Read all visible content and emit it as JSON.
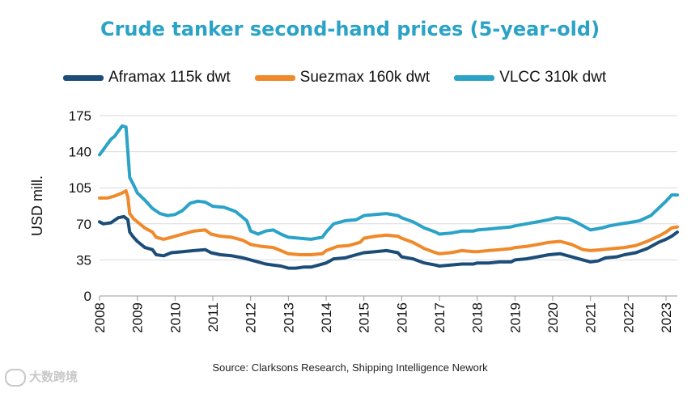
{
  "chart_data": {
    "type": "line",
    "title": "Crude tanker second-hand prices (5-year-old)",
    "title_color": "#2ba3c7",
    "ylabel": "USD mill.",
    "xlabel": "",
    "ylim": [
      0,
      175
    ],
    "xlim": [
      2008,
      2023.3
    ],
    "yticks": [
      0,
      35,
      70,
      105,
      140,
      175
    ],
    "xticks": [
      "2008",
      "2009",
      "2010",
      "2011",
      "2012",
      "2013",
      "2014",
      "2015",
      "2016",
      "2017",
      "2018",
      "2019",
      "2020",
      "2021",
      "2022",
      "2023"
    ],
    "grid": "horizontal",
    "legend_position": "top",
    "series": [
      {
        "name": "Aframax 115k dwt",
        "color": "#1c4d78",
        "points": [
          [
            2008.0,
            72
          ],
          [
            2008.1,
            70
          ],
          [
            2008.3,
            71
          ],
          [
            2008.5,
            76
          ],
          [
            2008.65,
            77
          ],
          [
            2008.75,
            74
          ],
          [
            2008.8,
            62
          ],
          [
            2008.9,
            57
          ],
          [
            2009.0,
            53
          ],
          [
            2009.2,
            47
          ],
          [
            2009.4,
            45
          ],
          [
            2009.5,
            40
          ],
          [
            2009.7,
            39
          ],
          [
            2009.9,
            42
          ],
          [
            2010.2,
            43
          ],
          [
            2010.5,
            44
          ],
          [
            2010.8,
            45
          ],
          [
            2010.95,
            42
          ],
          [
            2011.2,
            40
          ],
          [
            2011.5,
            39
          ],
          [
            2011.8,
            37
          ],
          [
            2012.0,
            35
          ],
          [
            2012.2,
            33
          ],
          [
            2012.4,
            31
          ],
          [
            2012.6,
            30
          ],
          [
            2012.8,
            29
          ],
          [
            2013.0,
            27
          ],
          [
            2013.2,
            27
          ],
          [
            2013.4,
            28
          ],
          [
            2013.6,
            28
          ],
          [
            2013.8,
            30
          ],
          [
            2014.0,
            32
          ],
          [
            2014.2,
            36
          ],
          [
            2014.5,
            37
          ],
          [
            2014.8,
            40
          ],
          [
            2015.0,
            42
          ],
          [
            2015.3,
            43
          ],
          [
            2015.6,
            44
          ],
          [
            2015.9,
            42
          ],
          [
            2016.0,
            38
          ],
          [
            2016.3,
            36
          ],
          [
            2016.6,
            32
          ],
          [
            2016.9,
            30
          ],
          [
            2017.0,
            29
          ],
          [
            2017.3,
            30
          ],
          [
            2017.6,
            31
          ],
          [
            2017.9,
            31
          ],
          [
            2018.0,
            32
          ],
          [
            2018.3,
            32
          ],
          [
            2018.6,
            33
          ],
          [
            2018.9,
            33
          ],
          [
            2019.0,
            35
          ],
          [
            2019.3,
            36
          ],
          [
            2019.6,
            38
          ],
          [
            2019.9,
            40
          ],
          [
            2020.2,
            41
          ],
          [
            2020.5,
            38
          ],
          [
            2020.8,
            35
          ],
          [
            2021.0,
            33
          ],
          [
            2021.2,
            34
          ],
          [
            2021.4,
            37
          ],
          [
            2021.7,
            38
          ],
          [
            2021.9,
            40
          ],
          [
            2022.2,
            42
          ],
          [
            2022.5,
            46
          ],
          [
            2022.8,
            52
          ],
          [
            2023.0,
            55
          ],
          [
            2023.15,
            58
          ],
          [
            2023.3,
            62
          ]
        ]
      },
      {
        "name": "Suezmax 160k dwt",
        "color": "#f0892a",
        "points": [
          [
            2008.0,
            95
          ],
          [
            2008.2,
            95
          ],
          [
            2008.4,
            97
          ],
          [
            2008.6,
            100
          ],
          [
            2008.7,
            102
          ],
          [
            2008.75,
            96
          ],
          [
            2008.8,
            80
          ],
          [
            2008.9,
            75
          ],
          [
            2009.0,
            72
          ],
          [
            2009.2,
            66
          ],
          [
            2009.4,
            62
          ],
          [
            2009.5,
            57
          ],
          [
            2009.7,
            55
          ],
          [
            2009.9,
            57
          ],
          [
            2010.2,
            60
          ],
          [
            2010.5,
            63
          ],
          [
            2010.8,
            64
          ],
          [
            2010.95,
            60
          ],
          [
            2011.2,
            58
          ],
          [
            2011.5,
            57
          ],
          [
            2011.8,
            54
          ],
          [
            2012.0,
            50
          ],
          [
            2012.3,
            48
          ],
          [
            2012.6,
            47
          ],
          [
            2012.8,
            44
          ],
          [
            2013.0,
            41
          ],
          [
            2013.3,
            40
          ],
          [
            2013.6,
            40
          ],
          [
            2013.9,
            41
          ],
          [
            2014.0,
            44
          ],
          [
            2014.3,
            48
          ],
          [
            2014.6,
            49
          ],
          [
            2014.9,
            52
          ],
          [
            2015.0,
            56
          ],
          [
            2015.3,
            58
          ],
          [
            2015.6,
            59
          ],
          [
            2015.9,
            58
          ],
          [
            2016.0,
            56
          ],
          [
            2016.3,
            52
          ],
          [
            2016.6,
            46
          ],
          [
            2016.9,
            42
          ],
          [
            2017.0,
            41
          ],
          [
            2017.3,
            42
          ],
          [
            2017.6,
            44
          ],
          [
            2017.9,
            43
          ],
          [
            2018.0,
            43
          ],
          [
            2018.3,
            44
          ],
          [
            2018.6,
            45
          ],
          [
            2018.9,
            46
          ],
          [
            2019.0,
            47
          ],
          [
            2019.3,
            48
          ],
          [
            2019.6,
            50
          ],
          [
            2019.9,
            52
          ],
          [
            2020.2,
            53
          ],
          [
            2020.5,
            50
          ],
          [
            2020.8,
            45
          ],
          [
            2021.0,
            44
          ],
          [
            2021.3,
            45
          ],
          [
            2021.6,
            46
          ],
          [
            2021.9,
            47
          ],
          [
            2022.2,
            49
          ],
          [
            2022.5,
            53
          ],
          [
            2022.8,
            58
          ],
          [
            2023.0,
            62
          ],
          [
            2023.15,
            66
          ],
          [
            2023.3,
            67
          ]
        ]
      },
      {
        "name": "VLCC 310k dwt",
        "color": "#2ba3c7",
        "points": [
          [
            2008.0,
            137
          ],
          [
            2008.1,
            142
          ],
          [
            2008.2,
            147
          ],
          [
            2008.3,
            152
          ],
          [
            2008.4,
            155
          ],
          [
            2008.5,
            160
          ],
          [
            2008.6,
            165
          ],
          [
            2008.7,
            164
          ],
          [
            2008.75,
            140
          ],
          [
            2008.8,
            115
          ],
          [
            2008.9,
            108
          ],
          [
            2009.0,
            100
          ],
          [
            2009.2,
            93
          ],
          [
            2009.4,
            85
          ],
          [
            2009.6,
            80
          ],
          [
            2009.8,
            78
          ],
          [
            2010.0,
            79
          ],
          [
            2010.2,
            83
          ],
          [
            2010.4,
            90
          ],
          [
            2010.6,
            92
          ],
          [
            2010.8,
            91
          ],
          [
            2011.0,
            87
          ],
          [
            2011.3,
            86
          ],
          [
            2011.6,
            82
          ],
          [
            2011.9,
            73
          ],
          [
            2012.0,
            63
          ],
          [
            2012.2,
            60
          ],
          [
            2012.4,
            63
          ],
          [
            2012.6,
            64
          ],
          [
            2012.8,
            60
          ],
          [
            2013.0,
            57
          ],
          [
            2013.3,
            56
          ],
          [
            2013.6,
            55
          ],
          [
            2013.9,
            57
          ],
          [
            2014.0,
            62
          ],
          [
            2014.2,
            70
          ],
          [
            2014.5,
            73
          ],
          [
            2014.8,
            74
          ],
          [
            2015.0,
            78
          ],
          [
            2015.3,
            79
          ],
          [
            2015.6,
            80
          ],
          [
            2015.9,
            78
          ],
          [
            2016.0,
            76
          ],
          [
            2016.3,
            72
          ],
          [
            2016.6,
            66
          ],
          [
            2016.9,
            62
          ],
          [
            2017.0,
            60
          ],
          [
            2017.3,
            61
          ],
          [
            2017.6,
            63
          ],
          [
            2017.9,
            63
          ],
          [
            2018.0,
            64
          ],
          [
            2018.3,
            65
          ],
          [
            2018.6,
            66
          ],
          [
            2018.9,
            67
          ],
          [
            2019.0,
            68
          ],
          [
            2019.3,
            70
          ],
          [
            2019.6,
            72
          ],
          [
            2019.9,
            74
          ],
          [
            2020.1,
            76
          ],
          [
            2020.4,
            75
          ],
          [
            2020.6,
            72
          ],
          [
            2020.8,
            68
          ],
          [
            2021.0,
            64
          ],
          [
            2021.3,
            66
          ],
          [
            2021.5,
            68
          ],
          [
            2021.8,
            70
          ],
          [
            2022.0,
            71
          ],
          [
            2022.3,
            73
          ],
          [
            2022.6,
            78
          ],
          [
            2022.8,
            85
          ],
          [
            2023.0,
            92
          ],
          [
            2023.15,
            98
          ],
          [
            2023.3,
            98
          ]
        ]
      }
    ]
  },
  "source": "Source: Clarksons Research, Shipping Intelligence Nework",
  "watermark": "大数跨境"
}
